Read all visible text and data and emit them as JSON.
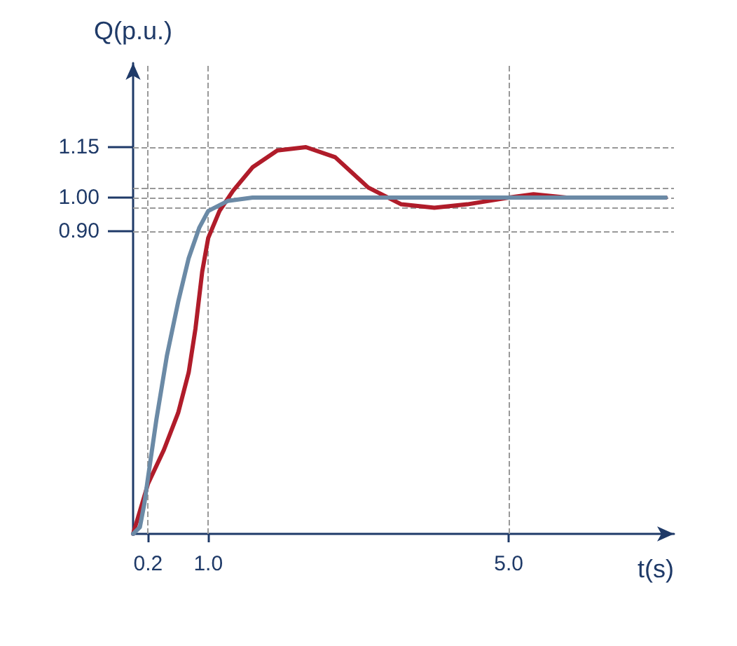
{
  "chart_data": {
    "type": "line",
    "xlabel": "t(s)",
    "ylabel": "Q(p.u.)",
    "xlim": [
      0,
      7.2
    ],
    "ylim": [
      0,
      1.4
    ],
    "xticks": [
      {
        "value": 0.2,
        "label": "0.2"
      },
      {
        "value": 1,
        "label": "1.0"
      },
      {
        "value": 5,
        "label": "5.0"
      }
    ],
    "yticks": [
      {
        "value": 0.9,
        "label": "0.90"
      },
      {
        "value": 1,
        "label": "1.00"
      },
      {
        "value": 1.15,
        "label": "1.15"
      }
    ],
    "series": [
      {
        "color": "#b01c2a",
        "x": [
          0,
          0.2,
          0.41,
          0.6,
          0.74,
          0.83,
          0.92,
          1.0,
          1.15,
          1.33,
          1.59,
          1.92,
          2.3,
          2.69,
          3.13,
          3.57,
          4.01,
          4.45,
          5.0,
          5.33,
          5.77,
          6.43,
          7.09
        ],
        "values": [
          0,
          0.15,
          0.25,
          0.36,
          0.48,
          0.61,
          0.78,
          0.88,
          0.96,
          1.02,
          1.09,
          1.14,
          1.15,
          1.12,
          1.03,
          0.98,
          0.97,
          0.98,
          1.0,
          1.01,
          1.0,
          1.0,
          1.0
        ]
      },
      {
        "color": "#6b8aa6",
        "x": [
          0,
          0.09,
          0.15,
          0.2,
          0.31,
          0.45,
          0.6,
          0.74,
          0.88,
          1.0,
          1.26,
          1.59,
          2.91,
          7.09
        ],
        "values": [
          0,
          0.02,
          0.09,
          0.17,
          0.34,
          0.53,
          0.69,
          0.82,
          0.91,
          0.96,
          0.99,
          1.0,
          1.0,
          1.0
        ]
      }
    ],
    "ref_lines": [
      {
        "axis": "y",
        "value": 1.15,
        "color": "#999999",
        "line_style": "dashed"
      },
      {
        "axis": "y",
        "value": 1.03,
        "color": "#999999",
        "line_style": "dashed"
      },
      {
        "axis": "y",
        "value": 1.0,
        "color": "#999999",
        "line_style": "dashed"
      },
      {
        "axis": "y",
        "value": 0.97,
        "color": "#999999",
        "line_style": "dashed"
      },
      {
        "axis": "y",
        "value": 0.9,
        "color": "#999999",
        "line_style": "dashed"
      },
      {
        "axis": "x",
        "value": 0.2,
        "color": "#999999",
        "line_style": "dashed"
      },
      {
        "axis": "x",
        "value": 1.0,
        "color": "#999999",
        "line_style": "dashed"
      },
      {
        "axis": "x",
        "value": 5.0,
        "color": "#999999",
        "line_style": "dashed"
      }
    ],
    "grid": false,
    "marker": "none",
    "line_style": "solid"
  }
}
